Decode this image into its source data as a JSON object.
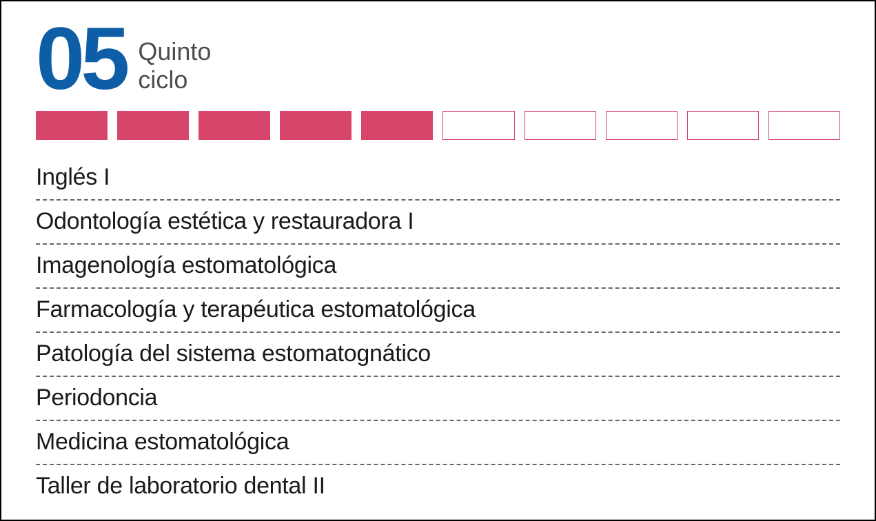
{
  "colors": {
    "number": "#0d5ea6",
    "subtitle": "#4d4d4d",
    "course_text": "#1a1a1a",
    "divider": "#666666",
    "box_filled_bg": "#d8456b",
    "box_filled_border": "#d8456b",
    "box_empty_bg": "#ffffff",
    "box_empty_border": "#d8456b"
  },
  "header": {
    "number": "05",
    "subtitle_line1": "Quinto",
    "subtitle_line2": "ciclo"
  },
  "progress": {
    "total": 10,
    "filled": 5
  },
  "courses": [
    "Inglés I",
    "Odontología estética y restauradora I",
    "Imagenología estomatológica",
    "Farmacología y terapéutica estomatológica",
    "Patología del sistema estomatognático",
    "Periodoncia",
    "Medicina estomatológica",
    "Taller de laboratorio dental II"
  ]
}
